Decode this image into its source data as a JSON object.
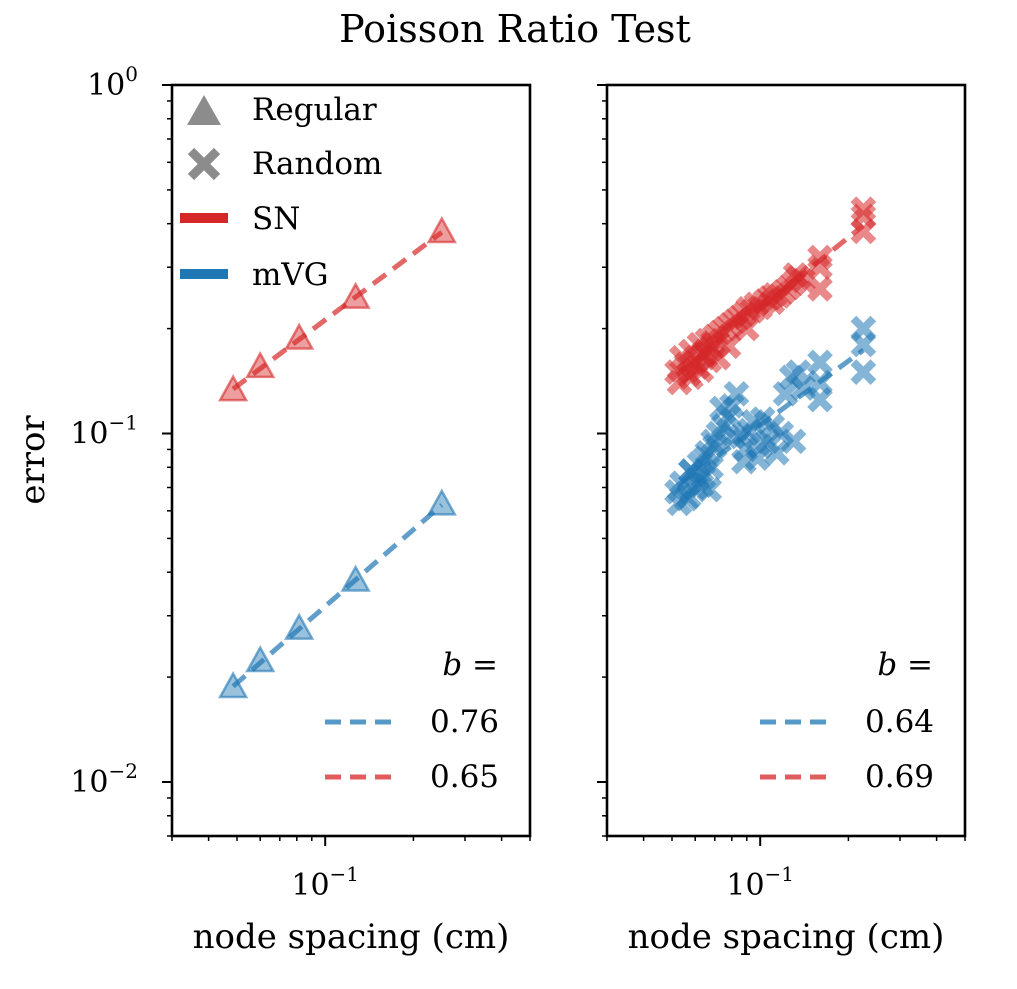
{
  "title": "Poisson Ratio Test",
  "colors": {
    "sn": "#d62728",
    "mvg": "#1f77b4",
    "legend_marker": "#8c8c8c"
  },
  "legend": {
    "markers": [
      {
        "label": "Regular",
        "icon": "triangle-icon"
      },
      {
        "label": "Random",
        "icon": "x-icon"
      }
    ],
    "methods": [
      {
        "label": "SN",
        "key": "sn"
      },
      {
        "label": "mVG",
        "key": "mvg"
      }
    ]
  },
  "chart_data": [
    {
      "type": "scatter",
      "panel": "left",
      "xlabel": "node spacing (cm)",
      "ylabel": "error",
      "xscale": "log",
      "yscale": "log",
      "xlim": [
        0.03,
        0.5
      ],
      "ylim": [
        0.007,
        1.0
      ],
      "x_tick_labels": [
        {
          "base": "10",
          "exp": "−1",
          "value": 0.1
        }
      ],
      "y_tick_labels": [
        {
          "base": "10",
          "exp": "0",
          "value": 1.0
        },
        {
          "base": "10",
          "exp": "−1",
          "value": 0.1
        },
        {
          "base": "10",
          "exp": "−2",
          "value": 0.01
        }
      ],
      "series": [
        {
          "name": "SN",
          "marker": "triangle",
          "color_key": "sn",
          "x": [
            0.0485,
            0.06,
            0.0815,
            0.127,
            0.25
          ],
          "y": [
            0.133,
            0.155,
            0.187,
            0.245,
            0.378
          ],
          "fit_b": "0.65"
        },
        {
          "name": "mVG",
          "marker": "triangle",
          "color_key": "mvg",
          "x": [
            0.0485,
            0.06,
            0.0815,
            0.127,
            0.25
          ],
          "y": [
            0.0187,
            0.0222,
            0.0275,
            0.0378,
            0.0625
          ],
          "fit_b": "0.76"
        }
      ],
      "fit_legend": {
        "header": "b =",
        "entries": [
          {
            "label": "0.76",
            "color_key": "mvg"
          },
          {
            "label": "0.65",
            "color_key": "sn"
          }
        ]
      }
    },
    {
      "type": "scatter",
      "panel": "right",
      "xlabel": "node spacing (cm)",
      "xscale": "log",
      "yscale": "log",
      "xlim": [
        0.03,
        0.5
      ],
      "ylim": [
        0.007,
        1.0
      ],
      "x_tick_labels": [
        {
          "base": "10",
          "exp": "−1",
          "value": 0.1
        }
      ],
      "series": [
        {
          "name": "SN",
          "marker": "x",
          "color_key": "sn",
          "x": [
            0.052,
            0.054,
            0.056,
            0.058,
            0.06,
            0.062,
            0.064,
            0.066,
            0.068,
            0.07,
            0.053,
            0.057,
            0.061,
            0.065,
            0.069,
            0.073,
            0.076,
            0.079,
            0.082,
            0.085,
            0.088,
            0.091,
            0.094,
            0.097,
            0.1,
            0.104,
            0.108,
            0.112,
            0.116,
            0.12,
            0.125,
            0.13,
            0.135,
            0.14,
            0.16,
            0.16,
            0.16,
            0.225,
            0.225,
            0.225,
            0.072,
            0.078,
            0.09,
            0.11,
            0.132,
            0.058,
            0.063,
            0.067
          ],
          "y": [
            0.15,
            0.165,
            0.158,
            0.172,
            0.16,
            0.18,
            0.168,
            0.185,
            0.175,
            0.19,
            0.14,
            0.148,
            0.155,
            0.17,
            0.182,
            0.195,
            0.2,
            0.205,
            0.21,
            0.215,
            0.22,
            0.228,
            0.225,
            0.235,
            0.23,
            0.24,
            0.245,
            0.25,
            0.248,
            0.255,
            0.262,
            0.27,
            0.28,
            0.275,
            0.3,
            0.32,
            0.26,
            0.38,
            0.42,
            0.44,
            0.165,
            0.178,
            0.2,
            0.238,
            0.285,
            0.145,
            0.152,
            0.162
          ],
          "fit_b": "0.69"
        },
        {
          "name": "mVG",
          "marker": "x",
          "color_key": "mvg",
          "x": [
            0.052,
            0.054,
            0.056,
            0.058,
            0.06,
            0.062,
            0.064,
            0.066,
            0.068,
            0.07,
            0.053,
            0.057,
            0.061,
            0.065,
            0.069,
            0.072,
            0.075,
            0.078,
            0.08,
            0.083,
            0.086,
            0.089,
            0.092,
            0.095,
            0.098,
            0.102,
            0.106,
            0.11,
            0.114,
            0.118,
            0.122,
            0.128,
            0.135,
            0.14,
            0.16,
            0.16,
            0.16,
            0.225,
            0.225,
            0.225,
            0.074,
            0.081,
            0.088,
            0.1,
            0.13,
            0.058,
            0.063,
            0.067
          ],
          "y": [
            0.068,
            0.072,
            0.065,
            0.078,
            0.07,
            0.082,
            0.075,
            0.088,
            0.08,
            0.092,
            0.063,
            0.066,
            0.074,
            0.085,
            0.095,
            0.1,
            0.105,
            0.112,
            0.12,
            0.13,
            0.098,
            0.09,
            0.102,
            0.108,
            0.085,
            0.11,
            0.095,
            0.105,
            0.088,
            0.1,
            0.13,
            0.145,
            0.15,
            0.135,
            0.125,
            0.14,
            0.16,
            0.15,
            0.18,
            0.2,
            0.118,
            0.098,
            0.083,
            0.092,
            0.095,
            0.078,
            0.071,
            0.069
          ],
          "fit_b": "0.64"
        }
      ],
      "fit_legend": {
        "header": "b =",
        "entries": [
          {
            "label": "0.64",
            "color_key": "mvg"
          },
          {
            "label": "0.69",
            "color_key": "sn"
          }
        ]
      }
    }
  ]
}
